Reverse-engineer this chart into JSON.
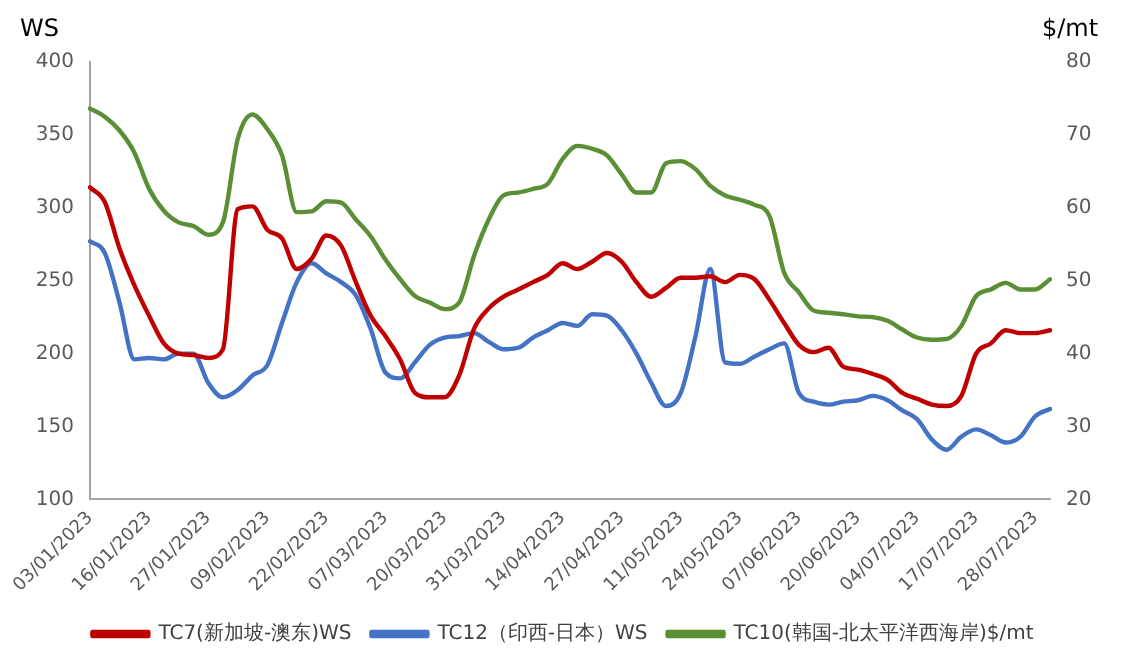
{
  "chart_data": {
    "type": "line",
    "ylabel": "WS",
    "y2label": "$/mt",
    "categories": [
      "03/01/2023",
      null,
      null,
      null,
      "16/01/2023",
      null,
      null,
      null,
      "27/01/2023",
      null,
      null,
      null,
      "09/02/2023",
      null,
      null,
      null,
      "22/02/2023",
      null,
      null,
      null,
      "07/03/2023",
      null,
      null,
      null,
      "20/03/2023",
      null,
      null,
      null,
      "31/03/2023",
      null,
      null,
      null,
      "14/04/2023",
      null,
      null,
      null,
      "27/04/2023",
      null,
      null,
      null,
      "11/05/2023",
      null,
      null,
      null,
      "24/05/2023",
      null,
      null,
      null,
      "07/06/2023",
      null,
      null,
      null,
      "20/06/2023",
      null,
      null,
      null,
      "04/07/2023",
      null,
      null,
      null,
      "17/07/2023",
      null,
      null,
      null,
      "28/07/2023",
      null
    ],
    "series": [
      {
        "name": "TC7(新加坡-澳东)WS",
        "color": "#c00000",
        "values": [
          314,
          304,
          272,
          247,
          226,
          207,
          200,
          199,
          197,
          203,
          299,
          301,
          285,
          279,
          258,
          265,
          281,
          274,
          249,
          226,
          212,
          196,
          173,
          170,
          170,
          185,
          217,
          231,
          239,
          244,
          249,
          254,
          262,
          258,
          263,
          269,
          263,
          249,
          239,
          245,
          252,
          252,
          253,
          249,
          254,
          251,
          237,
          221,
          206,
          201,
          204,
          191,
          189,
          186,
          182,
          173,
          169,
          165,
          164,
          171,
          200,
          207,
          216,
          214,
          214,
          216
        ]
      },
      {
        "name": "TC12（印西-日本）WS",
        "color": "#4472c4",
        "values": [
          277,
          269,
          235,
          196,
          197,
          196,
          200,
          200,
          180,
          170,
          175,
          185,
          192,
          221,
          249,
          262,
          255,
          249,
          240,
          217,
          187,
          183,
          194,
          206,
          211,
          212,
          214,
          208,
          203,
          204,
          211,
          216,
          221,
          219,
          227,
          226,
          216,
          200,
          180,
          164,
          173,
          212,
          258,
          194,
          193,
          198,
          203,
          207,
          173,
          167,
          165,
          167,
          168,
          171,
          168,
          161,
          155,
          141,
          134,
          143,
          148,
          144,
          139,
          143,
          157,
          162
        ]
      },
      {
        "name": "TC10(韩国-北太平洋西海岸)$/mt",
        "color": "#5a8f35",
        "axis": "y2",
        "values": [
          73.6,
          72.5,
          70.6,
          67.6,
          62.6,
          59.6,
          58.0,
          57.5,
          56.3,
          58.0,
          69.4,
          72.8,
          70.8,
          67.2,
          59.4,
          59.5,
          60.9,
          60.7,
          58.4,
          56.1,
          52.9,
          50.2,
          47.9,
          47.0,
          46.1,
          47.0,
          53.4,
          58.4,
          61.7,
          62.1,
          62.6,
          63.3,
          66.7,
          68.5,
          68.1,
          67.2,
          64.6,
          62.1,
          62.1,
          66.1,
          66.4,
          65.3,
          63.0,
          61.7,
          61.1,
          60.4,
          58.9,
          51.1,
          48.4,
          45.9,
          45.6,
          45.4,
          45.1,
          45.0,
          44.5,
          43.3,
          42.2,
          41.9,
          42.0,
          43.8,
          47.9,
          48.8,
          49.7,
          48.8,
          48.8,
          50.2
        ]
      }
    ],
    "ylim": [
      100,
      400
    ],
    "yticks": [
      100,
      150,
      200,
      250,
      300,
      350,
      400
    ],
    "y2lim": [
      20,
      80
    ],
    "y2ticks": [
      20,
      30,
      40,
      50,
      60,
      70,
      80
    ],
    "grid": false,
    "legend": "bottom",
    "marker": "none",
    "line_style": "solid"
  }
}
